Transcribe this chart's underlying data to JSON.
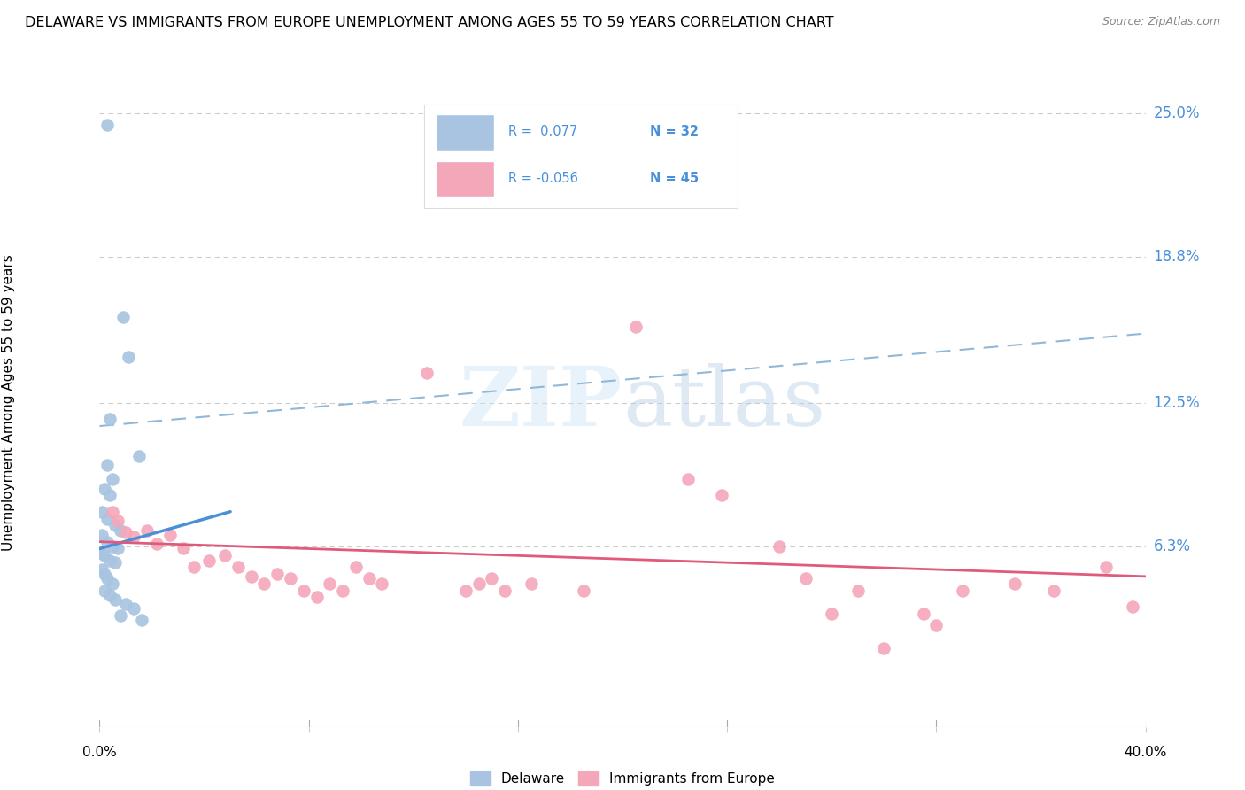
{
  "title": "DELAWARE VS IMMIGRANTS FROM EUROPE UNEMPLOYMENT AMONG AGES 55 TO 59 YEARS CORRELATION CHART",
  "source": "Source: ZipAtlas.com",
  "ylabel": "Unemployment Among Ages 55 to 59 years",
  "ytick_values": [
    25.0,
    18.8,
    12.5,
    6.3
  ],
  "xmin": 0.0,
  "xmax": 40.0,
  "ymin": -1.5,
  "ymax": 26.5,
  "delaware_color": "#a8c4e0",
  "delaware_edge": "#7aafd4",
  "immigrants_color": "#f4a7b9",
  "immigrants_edge": "#e87a98",
  "delaware_line_color": "#4a90d9",
  "immigrants_line_color": "#e05a7a",
  "dashed_line_color": "#90b8d8",
  "legend_blue_color": "#4a90d9",
  "delaware_scatter": [
    [
      0.3,
      24.5
    ],
    [
      0.9,
      16.2
    ],
    [
      1.1,
      14.5
    ],
    [
      0.4,
      11.8
    ],
    [
      0.3,
      9.8
    ],
    [
      0.5,
      9.2
    ],
    [
      1.5,
      10.2
    ],
    [
      0.2,
      8.8
    ],
    [
      0.4,
      8.5
    ],
    [
      0.1,
      7.8
    ],
    [
      0.3,
      7.5
    ],
    [
      0.6,
      7.2
    ],
    [
      0.8,
      7.0
    ],
    [
      0.1,
      6.8
    ],
    [
      0.3,
      6.5
    ],
    [
      0.5,
      6.3
    ],
    [
      0.7,
      6.2
    ],
    [
      0.1,
      6.0
    ],
    [
      0.2,
      5.9
    ],
    [
      0.4,
      5.7
    ],
    [
      0.6,
      5.6
    ],
    [
      0.1,
      5.3
    ],
    [
      0.2,
      5.1
    ],
    [
      0.3,
      4.9
    ],
    [
      0.5,
      4.7
    ],
    [
      0.2,
      4.4
    ],
    [
      0.4,
      4.2
    ],
    [
      0.6,
      4.0
    ],
    [
      1.0,
      3.8
    ],
    [
      1.3,
      3.6
    ],
    [
      0.8,
      3.3
    ],
    [
      1.6,
      3.1
    ]
  ],
  "immigrants_scatter": [
    [
      0.5,
      7.8
    ],
    [
      0.7,
      7.4
    ],
    [
      1.0,
      6.9
    ],
    [
      1.3,
      6.7
    ],
    [
      1.8,
      7.0
    ],
    [
      2.2,
      6.4
    ],
    [
      2.7,
      6.8
    ],
    [
      3.2,
      6.2
    ],
    [
      3.6,
      5.4
    ],
    [
      4.2,
      5.7
    ],
    [
      4.8,
      5.9
    ],
    [
      5.3,
      5.4
    ],
    [
      5.8,
      5.0
    ],
    [
      6.3,
      4.7
    ],
    [
      6.8,
      5.1
    ],
    [
      7.3,
      4.9
    ],
    [
      7.8,
      4.4
    ],
    [
      8.3,
      4.1
    ],
    [
      8.8,
      4.7
    ],
    [
      9.3,
      4.4
    ],
    [
      9.8,
      5.4
    ],
    [
      10.3,
      4.9
    ],
    [
      10.8,
      4.7
    ],
    [
      12.5,
      13.8
    ],
    [
      14.0,
      4.4
    ],
    [
      14.5,
      4.7
    ],
    [
      15.0,
      4.9
    ],
    [
      15.5,
      4.4
    ],
    [
      16.5,
      4.7
    ],
    [
      18.5,
      4.4
    ],
    [
      20.5,
      15.8
    ],
    [
      22.5,
      9.2
    ],
    [
      23.8,
      8.5
    ],
    [
      26.0,
      6.3
    ],
    [
      27.0,
      4.9
    ],
    [
      28.0,
      3.4
    ],
    [
      29.0,
      4.4
    ],
    [
      30.0,
      1.9
    ],
    [
      31.5,
      3.4
    ],
    [
      32.0,
      2.9
    ],
    [
      33.0,
      4.4
    ],
    [
      35.0,
      4.7
    ],
    [
      36.5,
      4.4
    ],
    [
      38.5,
      5.4
    ],
    [
      39.5,
      3.7
    ]
  ],
  "delaware_trend_x": [
    0.0,
    5.0
  ],
  "delaware_trend_y": [
    6.2,
    7.8
  ],
  "immigrants_trend_x": [
    0.0,
    40.0
  ],
  "immigrants_trend_y": [
    6.5,
    5.0
  ],
  "dashed_trend_x": [
    0.0,
    40.0
  ],
  "dashed_trend_y": [
    11.5,
    15.5
  ]
}
